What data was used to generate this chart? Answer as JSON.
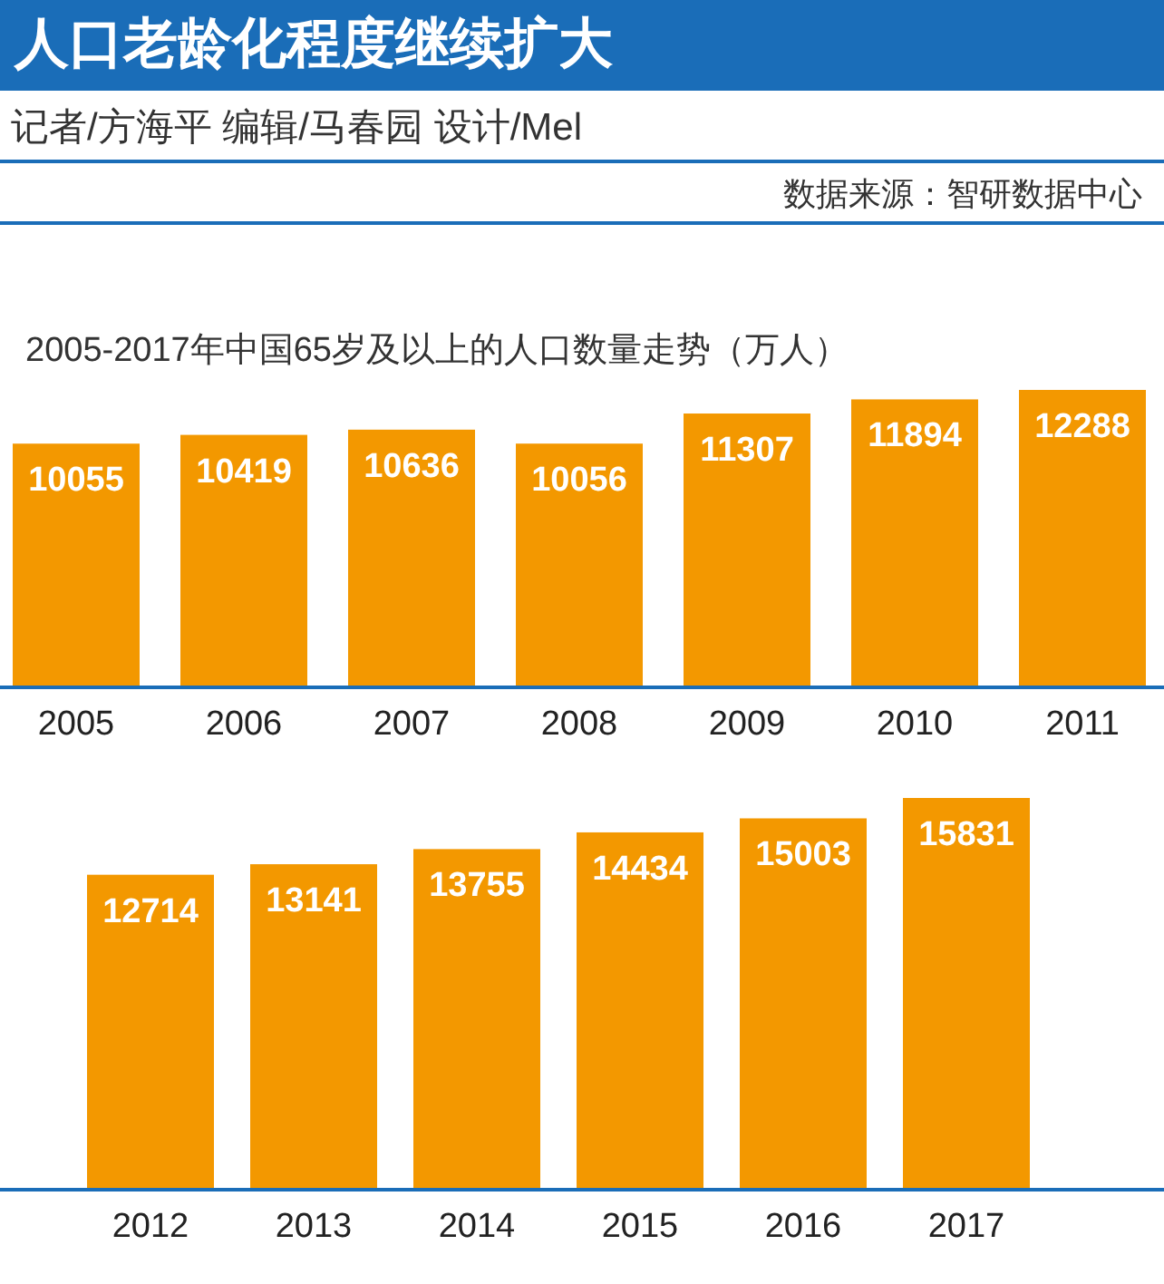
{
  "chart_data": [
    {
      "type": "bar",
      "title": "人口老龄化程度继续扩大",
      "subtitle": "记者/方海平  编辑/马春园  设计/Mel",
      "annotations": [
        "数据来源：智研数据中心",
        "2005-2017年中国65岁及以上的人口数量走势（万人）"
      ],
      "categories": [
        "2005",
        "2006",
        "2007",
        "2008",
        "2009",
        "2010",
        "2011"
      ],
      "values": [
        10055,
        10419,
        10636,
        10056,
        11307,
        11894,
        12288
      ],
      "color": "#f39800",
      "data_labels": true
    },
    {
      "type": "bar",
      "categories": [
        "2012",
        "2013",
        "2014",
        "2015",
        "2016",
        "2017"
      ],
      "values": [
        12714,
        13141,
        13755,
        14434,
        15003,
        15831
      ],
      "color": "#f39800",
      "data_labels": true
    }
  ]
}
